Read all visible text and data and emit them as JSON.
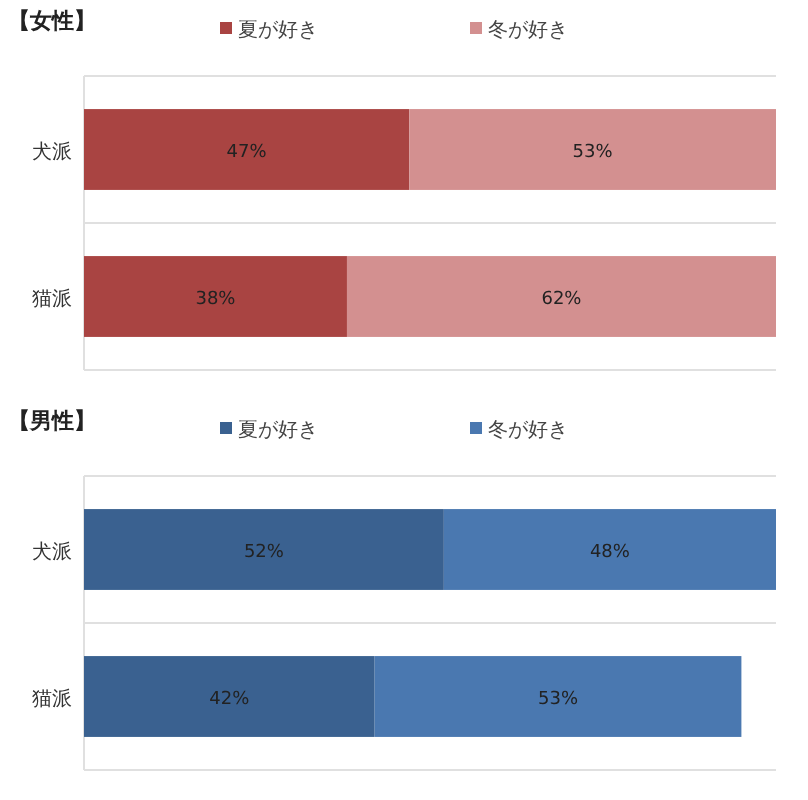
{
  "chart_data": [
    {
      "type": "bar",
      "orientation": "horizontal",
      "stacked": true,
      "title": "【女性】",
      "categories": [
        "犬派",
        "猫派"
      ],
      "grid": "y",
      "legend": "top",
      "series": [
        {
          "name": "夏が好き",
          "color": "#a94442",
          "values": [
            47,
            38
          ],
          "value_labels": [
            "47%",
            "38%"
          ]
        },
        {
          "name": "冬が好き",
          "color": "#d39090",
          "values": [
            53,
            62
          ],
          "value_labels": [
            "53%",
            "62%"
          ]
        }
      ]
    },
    {
      "type": "bar",
      "orientation": "horizontal",
      "stacked": true,
      "title": "【男性】",
      "categories": [
        "犬派",
        "猫派"
      ],
      "grid": "y",
      "legend": "top",
      "series": [
        {
          "name": "夏が好き",
          "color": "#3a6190",
          "values": [
            52,
            42
          ],
          "value_labels": [
            "52%",
            "42%"
          ]
        },
        {
          "name": "冬が好き",
          "color": "#4a78b0",
          "values": [
            48,
            53
          ],
          "value_labels": [
            "48%",
            "53%"
          ]
        }
      ]
    }
  ]
}
